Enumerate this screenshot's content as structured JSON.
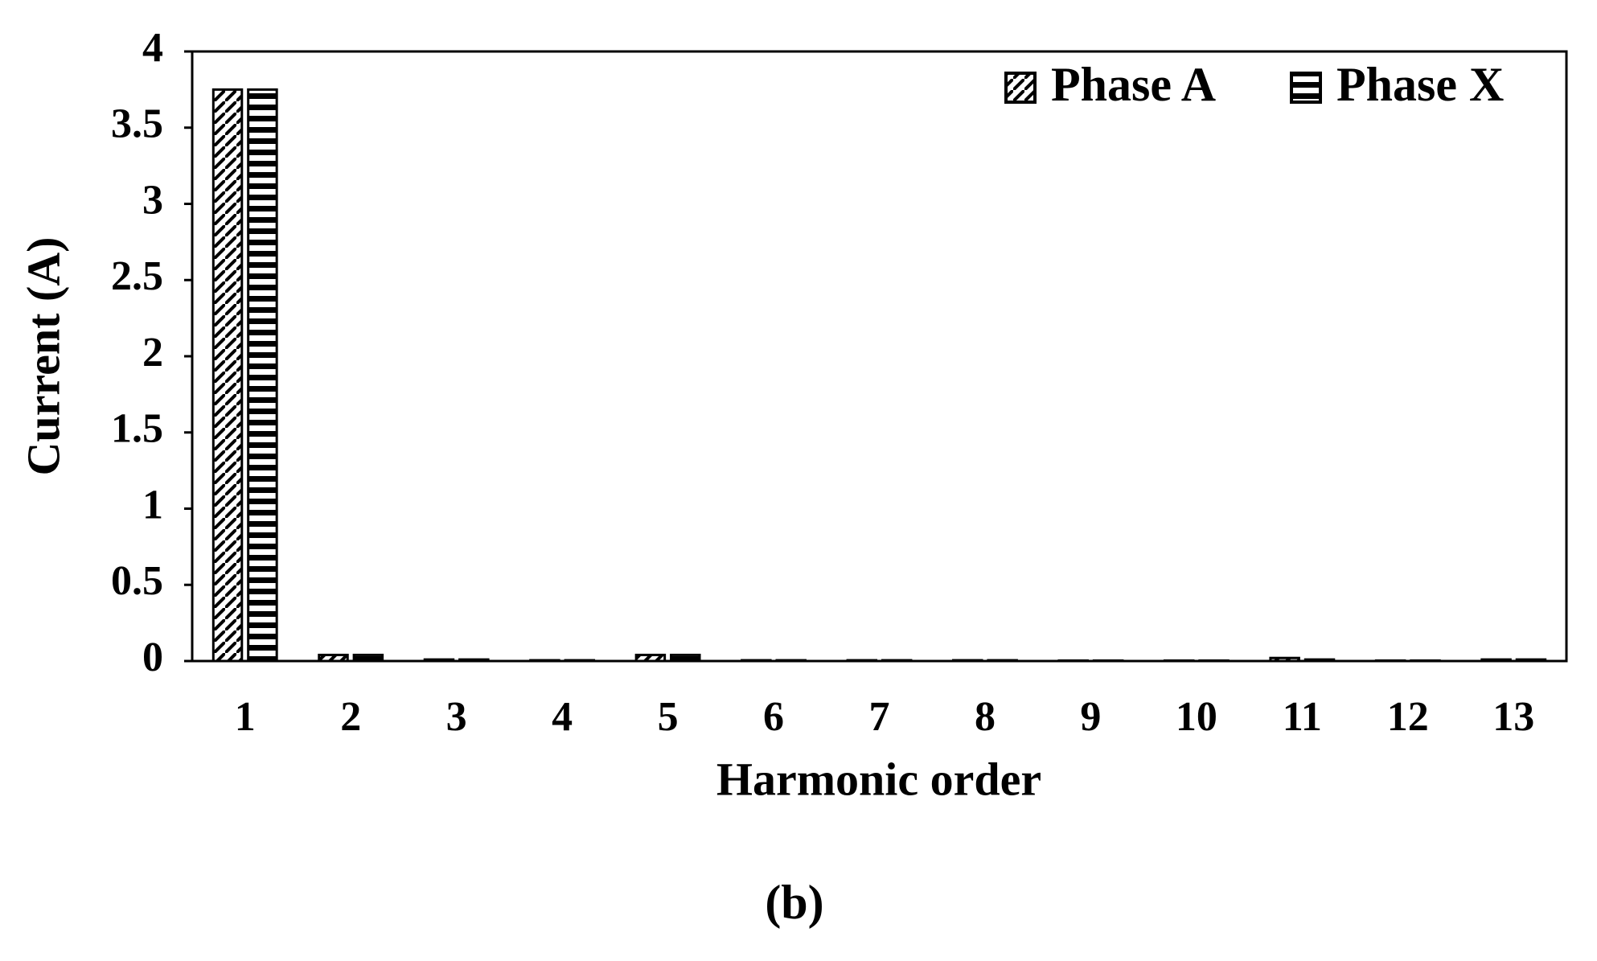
{
  "chart_data": {
    "type": "bar",
    "y_label": "Current (A)",
    "x_label": "Harmonic order",
    "caption": "(b)",
    "categories": [
      "1",
      "2",
      "3",
      "4",
      "5",
      "6",
      "7",
      "8",
      "9",
      "10",
      "11",
      "12",
      "13"
    ],
    "series": [
      {
        "name": "Phase A",
        "color": "#000000",
        "pattern": "diagonal",
        "values": [
          3.75,
          0.04,
          0.01,
          0.005,
          0.04,
          0.005,
          0.005,
          0.005,
          0.003,
          0.003,
          0.02,
          0.003,
          0.01
        ]
      },
      {
        "name": "Phase X",
        "color": "#000000",
        "pattern": "horizontal",
        "values": [
          3.75,
          0.04,
          0.01,
          0.005,
          0.04,
          0.005,
          0.005,
          0.005,
          0.003,
          0.003,
          0.01,
          0.003,
          0.01
        ]
      }
    ],
    "ylim": [
      0,
      4
    ],
    "yticks": [
      0,
      0.5,
      1,
      1.5,
      2,
      2.5,
      3,
      3.5,
      4
    ],
    "grid": false,
    "legend": "top-right"
  }
}
